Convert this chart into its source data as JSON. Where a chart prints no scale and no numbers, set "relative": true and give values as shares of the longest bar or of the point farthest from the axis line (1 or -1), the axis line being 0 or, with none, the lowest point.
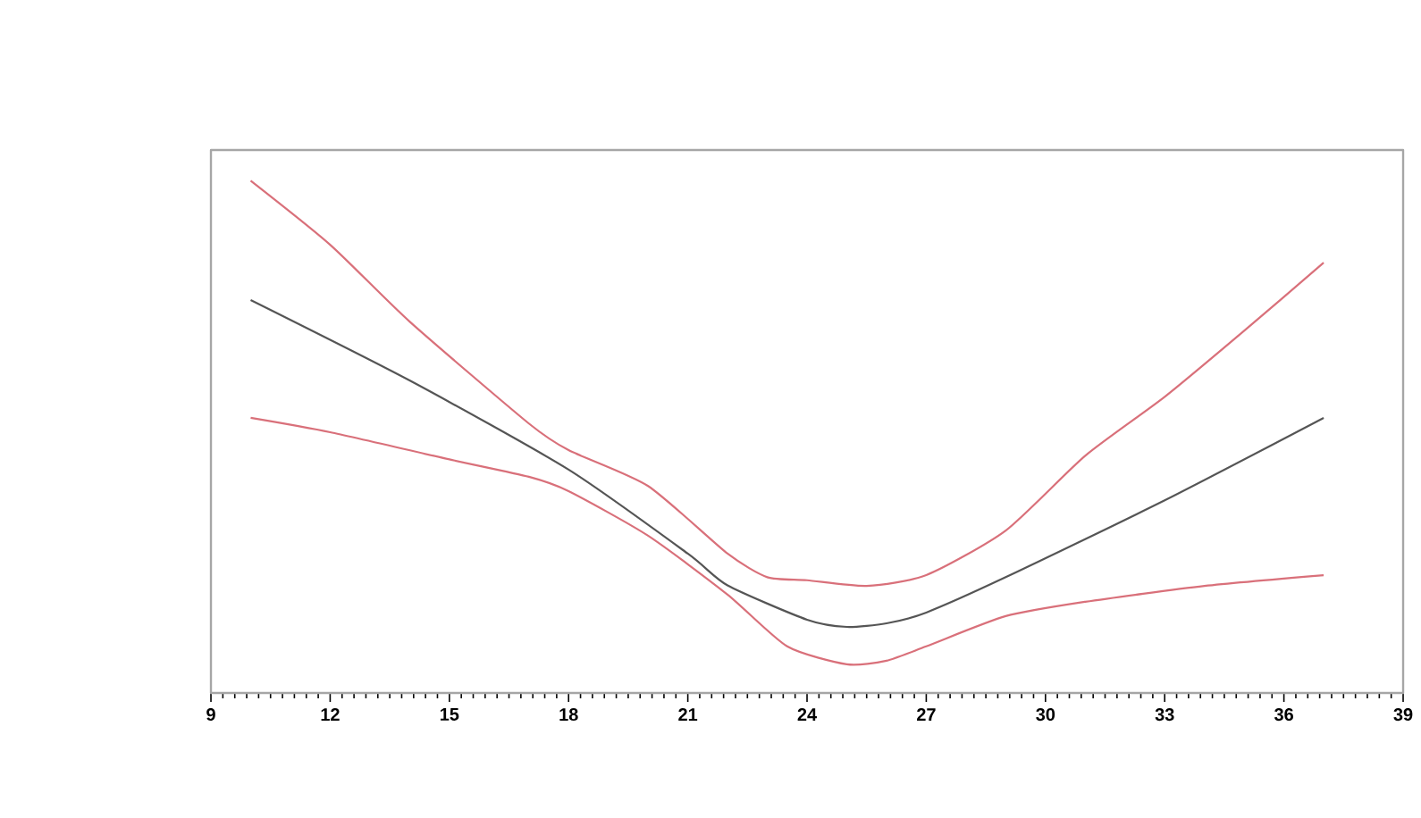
{
  "chart_data": {
    "type": "line",
    "relative": true,
    "xlim": [
      9,
      39
    ],
    "xticks": [
      9,
      12,
      15,
      18,
      21,
      24,
      27,
      30,
      33,
      36,
      39
    ],
    "grid": false,
    "marker": "none",
    "line_style": "solid",
    "series": [
      {
        "color": "#d9707a",
        "x": [
          10,
          12,
          14,
          17,
          18,
          20,
          22,
          23,
          24,
          25.5,
          27,
          29,
          31,
          33,
          35,
          37
        ],
        "values": [
          1.0,
          0.875,
          0.725,
          0.526,
          0.474,
          0.404,
          0.272,
          0.226,
          0.22,
          0.209,
          0.23,
          0.317,
          0.463,
          0.578,
          0.707,
          0.84
        ]
      },
      {
        "color": "#555555",
        "x": [
          10,
          14,
          18,
          21,
          22,
          24,
          25,
          26,
          27,
          29,
          33,
          37
        ],
        "values": [
          0.767,
          0.61,
          0.436,
          0.272,
          0.21,
          0.143,
          0.129,
          0.136,
          0.157,
          0.226,
          0.376,
          0.537
        ]
      },
      {
        "color": "#d9707a",
        "x": [
          10,
          12,
          15,
          17,
          18,
          20,
          22,
          23.5,
          25,
          26,
          27,
          29,
          31,
          34,
          37
        ],
        "values": [
          0.537,
          0.509,
          0.456,
          0.422,
          0.394,
          0.307,
          0.192,
          0.091,
          0.056,
          0.063,
          0.091,
          0.15,
          0.178,
          0.209,
          0.23
        ]
      }
    ]
  }
}
